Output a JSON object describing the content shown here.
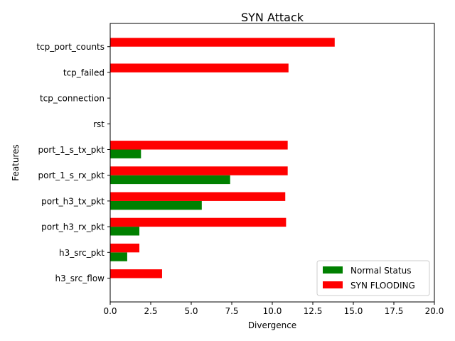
{
  "chart_data": {
    "type": "bar",
    "orientation": "horizontal",
    "title": "SYN Attack",
    "xlabel": "Divergence",
    "ylabel": "Features",
    "xlim": [
      0,
      20
    ],
    "xticks": [
      "0.0",
      "2.5",
      "5.0",
      "7.5",
      "10.0",
      "12.5",
      "15.0",
      "17.5",
      "20.0"
    ],
    "xtick_values": [
      0,
      2.5,
      5,
      7.5,
      10,
      12.5,
      15,
      17.5,
      20
    ],
    "categories": [
      "h3_src_flow",
      "h3_src_pkt",
      "port_h3_rx_pkt",
      "port_h3_tx_pkt",
      "port_1_s_rx_pkt",
      "port_1_s_tx_pkt",
      "rst",
      "tcp_connection",
      "tcp_failed",
      "tcp_port_counts"
    ],
    "series": [
      {
        "name": "Normal Status",
        "color": "#008000",
        "values": [
          0,
          1.05,
          1.8,
          5.65,
          7.4,
          1.9,
          0,
          0,
          0,
          0
        ]
      },
      {
        "name": "SYN FLOODING",
        "color": "#ff0000",
        "values": [
          3.2,
          1.8,
          10.85,
          10.8,
          10.95,
          10.95,
          0,
          0,
          11.0,
          13.85
        ]
      }
    ],
    "legend_position": "lower right",
    "grid": false
  }
}
